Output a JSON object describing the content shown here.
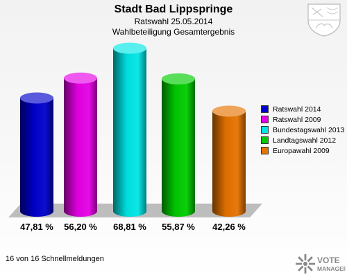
{
  "header": {
    "title": "Stadt Bad Lippspringe",
    "subtitle_1": "Ratswahl 25.05.2014",
    "subtitle_2": "Wahlbeteiligung Gesamtergebnis"
  },
  "chart_data": {
    "type": "bar",
    "categories": [
      "Ratswahl 2014",
      "Ratswahl 2009",
      "Bundestagswahl 2013",
      "Landtagswahl 2012",
      "Europawahl 2009"
    ],
    "values": [
      47.81,
      56.2,
      68.81,
      55.87,
      42.26
    ],
    "value_labels": [
      "47,81 %",
      "56,20 %",
      "68,81 %",
      "55,87 %",
      "42,26 %"
    ],
    "colors": [
      "#0000cc",
      "#e600e6",
      "#00e6e6",
      "#00cc00",
      "#e67300"
    ],
    "legend_position": "right",
    "grid": false
  },
  "legend": {
    "items": [
      "Ratswahl 2014",
      "Ratswahl 2009",
      "Bundestagswahl 2013",
      "Landtagswahl 2012",
      "Europawahl 2009"
    ]
  },
  "footer": {
    "status": "16 von 16 Schnellmeldungen"
  },
  "logo": {
    "line1": "VOTE",
    "line2": "MANAGER"
  },
  "icons": {
    "crest": "coat-of-arms-icon",
    "logo": "votemanager-logo"
  }
}
